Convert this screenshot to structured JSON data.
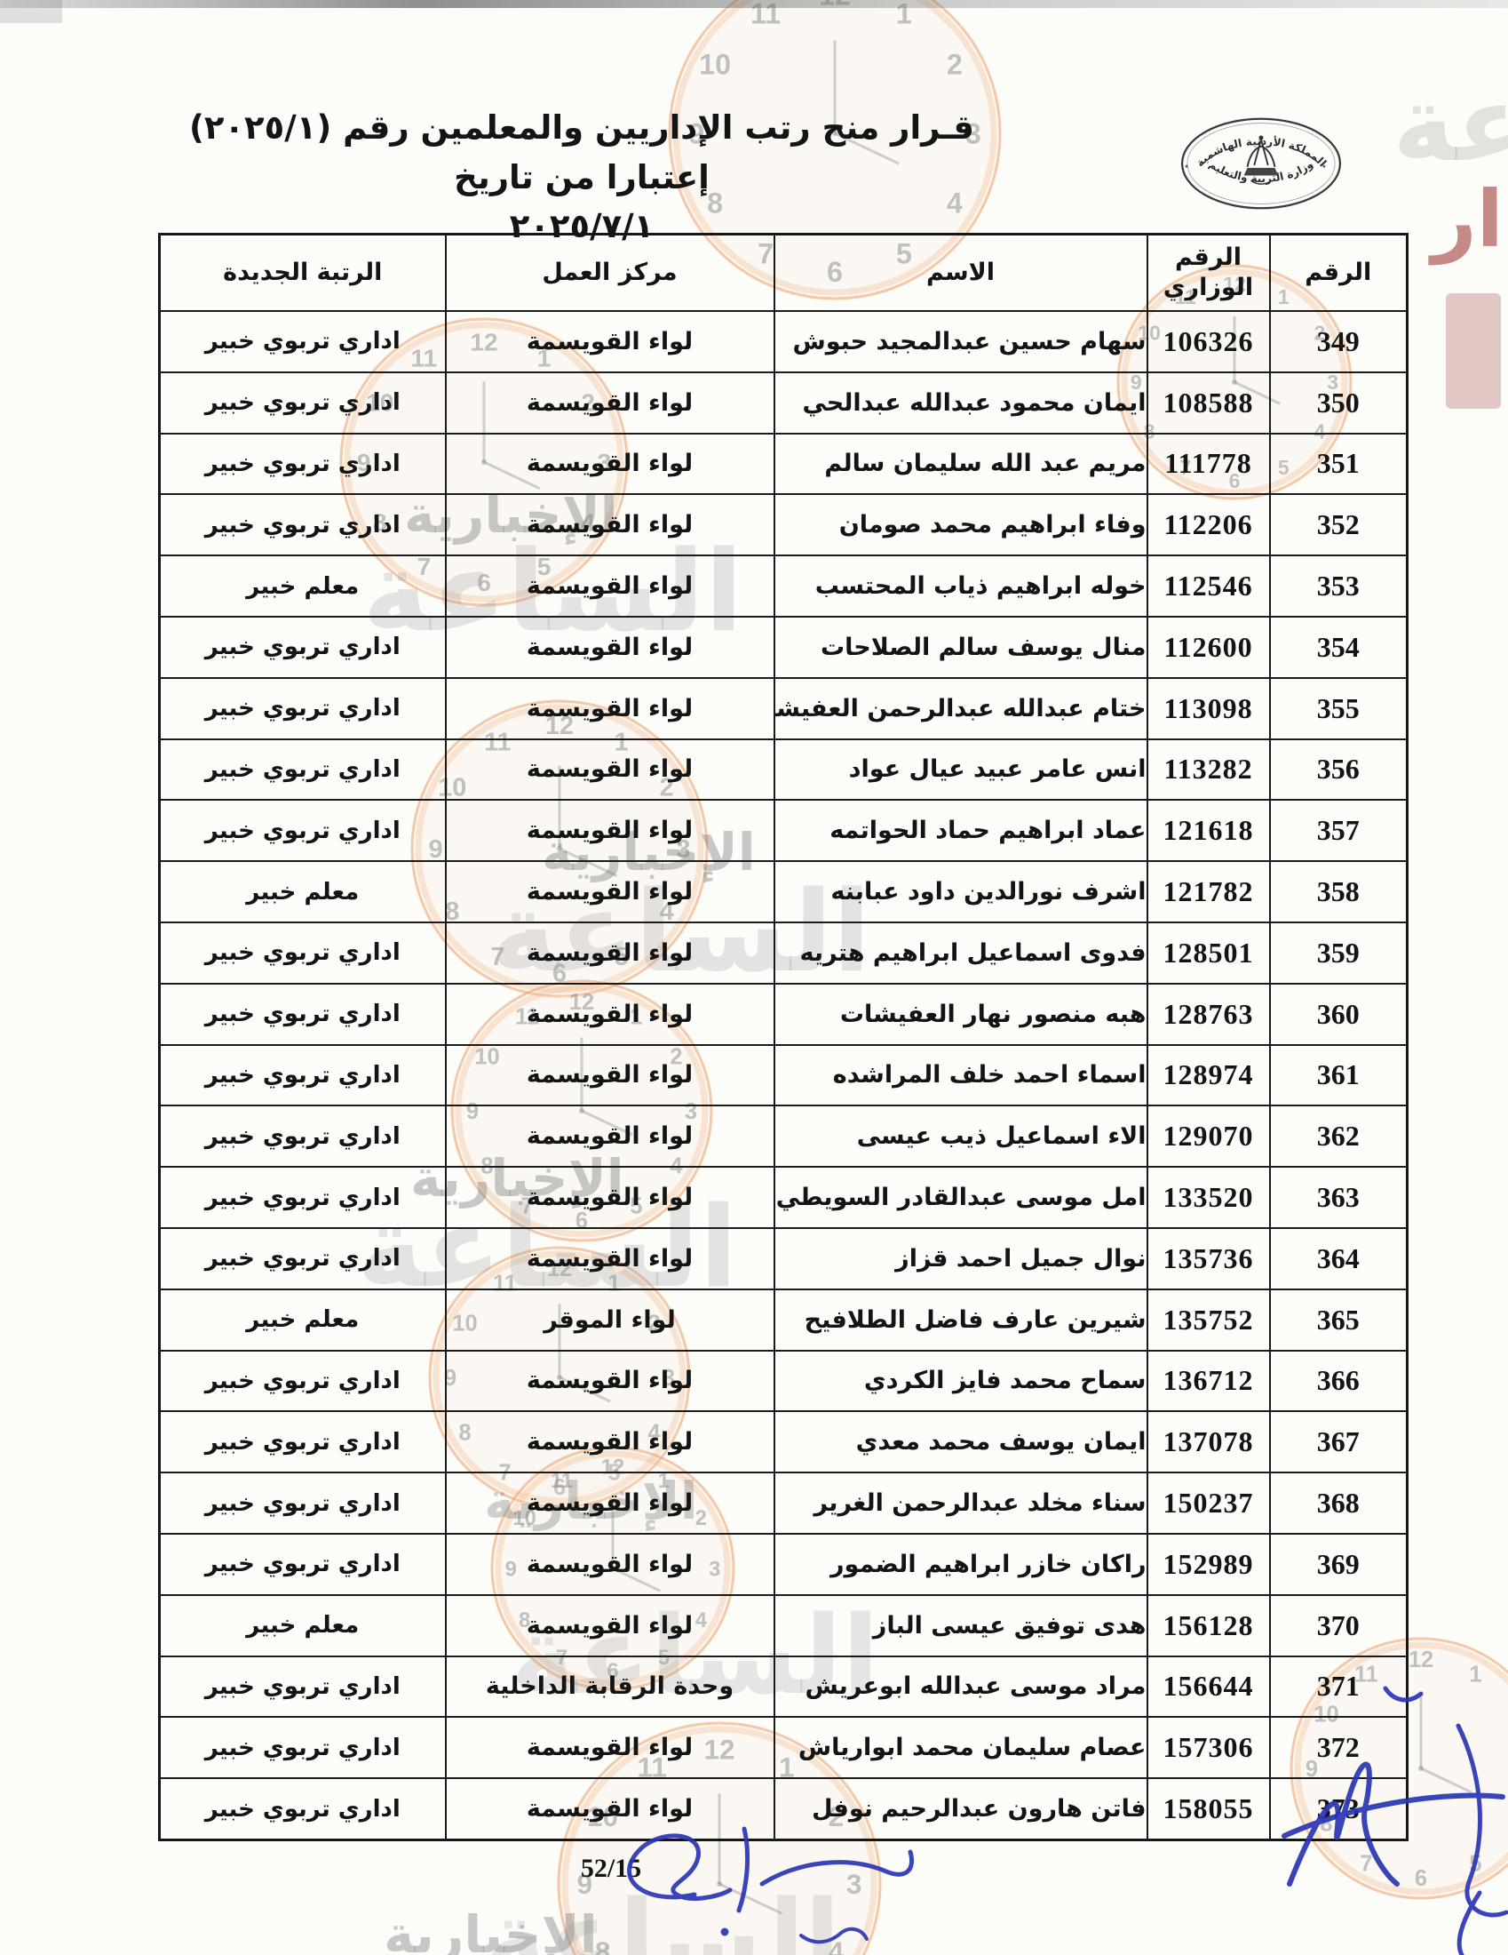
{
  "document": {
    "title_line1": "قـرار منح رتب الإداريين والمعلمين رقم (٢٠٢٥/١) إعتبارا من تاريخ",
    "title_line2": "٢٠٢٥/٧/١",
    "page_number": "52/15",
    "seal": {
      "top_text": "المملكة الأردنية الهاشمية",
      "bottom_text": "وزارة التربية والتعليم"
    }
  },
  "table": {
    "headers": {
      "serial": "الرقم",
      "ministry": "الرقم الوزاري",
      "name": "الاسم",
      "center": "مركز العمل",
      "rank": "الرتبة الجديدة"
    },
    "rows": [
      {
        "serial": "349",
        "ministry": "106326",
        "name": "سهام حسين عبدالمجيد حبوش",
        "center": "لواء القويسمة",
        "rank": "اداري تربوي خبير"
      },
      {
        "serial": "350",
        "ministry": "108588",
        "name": "ايمان محمود عبدالله عبدالحي",
        "center": "لواء القويسمة",
        "rank": "اداري تربوي خبير"
      },
      {
        "serial": "351",
        "ministry": "111778",
        "name": "مريم عبد الله سليمان سالم",
        "center": "لواء القويسمة",
        "rank": "اداري تربوي خبير"
      },
      {
        "serial": "352",
        "ministry": "112206",
        "name": "وفاء ابراهيم محمد صومان",
        "center": "لواء القويسمة",
        "rank": "اداري تربوي خبير"
      },
      {
        "serial": "353",
        "ministry": "112546",
        "name": "خوله ابراهيم ذياب المحتسب",
        "center": "لواء القويسمة",
        "rank": "معلم خبير"
      },
      {
        "serial": "354",
        "ministry": "112600",
        "name": "منال يوسف سالم الصلاحات",
        "center": "لواء القويسمة",
        "rank": "اداري تربوي خبير"
      },
      {
        "serial": "355",
        "ministry": "113098",
        "name": "ختام عبدالله عبدالرحمن العفيشات",
        "center": "لواء القويسمة",
        "rank": "اداري تربوي خبير"
      },
      {
        "serial": "356",
        "ministry": "113282",
        "name": "انس عامر عبيد عيال عواد",
        "center": "لواء القويسمة",
        "rank": "اداري تربوي خبير"
      },
      {
        "serial": "357",
        "ministry": "121618",
        "name": "عماد ابراهيم حماد الحواتمه",
        "center": "لواء القويسمة",
        "rank": "اداري تربوي خبير"
      },
      {
        "serial": "358",
        "ministry": "121782",
        "name": "اشرف نورالدين داود عبابنه",
        "center": "لواء القويسمة",
        "rank": "معلم خبير"
      },
      {
        "serial": "359",
        "ministry": "128501",
        "name": "فدوى اسماعيل ابراهيم هتريه",
        "center": "لواء القويسمة",
        "rank": "اداري تربوي خبير"
      },
      {
        "serial": "360",
        "ministry": "128763",
        "name": "هبه منصور نهار العفيشات",
        "center": "لواء القويسمة",
        "rank": "اداري تربوي خبير"
      },
      {
        "serial": "361",
        "ministry": "128974",
        "name": "اسماء احمد خلف المراشده",
        "center": "لواء القويسمة",
        "rank": "اداري تربوي خبير"
      },
      {
        "serial": "362",
        "ministry": "129070",
        "name": "الاء اسماعيل ذيب عيسى",
        "center": "لواء القويسمة",
        "rank": "اداري تربوي خبير"
      },
      {
        "serial": "363",
        "ministry": "133520",
        "name": "امل موسى عبدالقادر السويطي",
        "center": "لواء القويسمة",
        "rank": "اداري تربوي خبير"
      },
      {
        "serial": "364",
        "ministry": "135736",
        "name": "نوال جميل احمد قزاز",
        "center": "لواء القويسمة",
        "rank": "اداري تربوي خبير"
      },
      {
        "serial": "365",
        "ministry": "135752",
        "name": "شيرين عارف فاضل الطلافيح",
        "center": "لواء الموقر",
        "rank": "معلم خبير"
      },
      {
        "serial": "366",
        "ministry": "136712",
        "name": "سماح محمد فايز الكردي",
        "center": "لواء القويسمة",
        "rank": "اداري تربوي خبير"
      },
      {
        "serial": "367",
        "ministry": "137078",
        "name": "ايمان يوسف محمد معدي",
        "center": "لواء القويسمة",
        "rank": "اداري تربوي خبير"
      },
      {
        "serial": "368",
        "ministry": "150237",
        "name": "سناء مخلد عبدالرحمن الغرير",
        "center": "لواء القويسمة",
        "rank": "اداري تربوي خبير"
      },
      {
        "serial": "369",
        "ministry": "152989",
        "name": "راكان خازر ابراهيم الضمور",
        "center": "لواء القويسمة",
        "rank": "اداري تربوي خبير"
      },
      {
        "serial": "370",
        "ministry": "156128",
        "name": "هدى توفيق عيسى الباز",
        "center": "لواء القويسمة",
        "rank": "معلم خبير"
      },
      {
        "serial": "371",
        "ministry": "156644",
        "name": "مراد موسى عبدالله ابوعريش",
        "center": "وحدة الرقابة الداخلية",
        "rank": "اداري تربوي خبير"
      },
      {
        "serial": "372",
        "ministry": "157306",
        "name": "عصام سليمان محمد ابوارياش",
        "center": "لواء القويسمة",
        "rank": "اداري تربوي خبير"
      },
      {
        "serial": "373",
        "ministry": "158055",
        "name": "فاتن هارون عبدالرحيم نوفل",
        "center": "لواء القويسمة",
        "rank": "اداري تربوي خبير"
      }
    ]
  },
  "watermark": {
    "words": {
      "madar": "مدار",
      "alsaa": "الساعة",
      "akhbaria": "الإخبارية"
    }
  }
}
